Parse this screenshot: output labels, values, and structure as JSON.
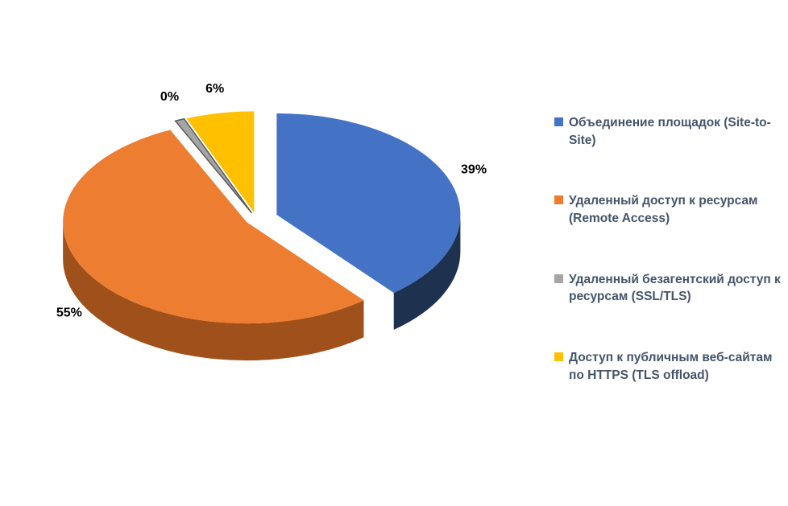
{
  "chart_data": {
    "type": "pie",
    "style": "3d-exploded",
    "title": "",
    "legend_position": "right",
    "background_color": "#FFFFFF",
    "data_label_color": "#000000",
    "legend_text_color": "#44546A",
    "categories": [
      "Объединение площадок (Site-to-Site)",
      "Удаленный доступ к ресурсам (Remote Access)",
      "Удаленный безагентский доступ к ресурсам (SSL/TLS)",
      "Доступ к публичным веб-сайтам по HTTPS (TLS offload)"
    ],
    "values": [
      39,
      55,
      0,
      6
    ],
    "slices": [
      {
        "label": "Объединение площадок (Site-to-Site)",
        "value": 39,
        "data_label": "39%",
        "color": "#4472C4",
        "side_color": "#1E3250"
      },
      {
        "label": "Удаленный доступ к ресурсам (Remote Access)",
        "value": 55,
        "data_label": "55%",
        "color": "#ED7D31",
        "side_color": "#A0511B"
      },
      {
        "label": "Удаленный безагентский доступ к ресурсам (SSL/TLS)",
        "value": 0,
        "data_label": "0%",
        "color": "#A5A5A5",
        "side_color": "#595959"
      },
      {
        "label": "Доступ к публичным веб-сайтам по HTTPS (TLS offload)",
        "value": 6,
        "data_label": "6%",
        "color": "#FFC000",
        "side_color": "#9C7500"
      }
    ]
  }
}
